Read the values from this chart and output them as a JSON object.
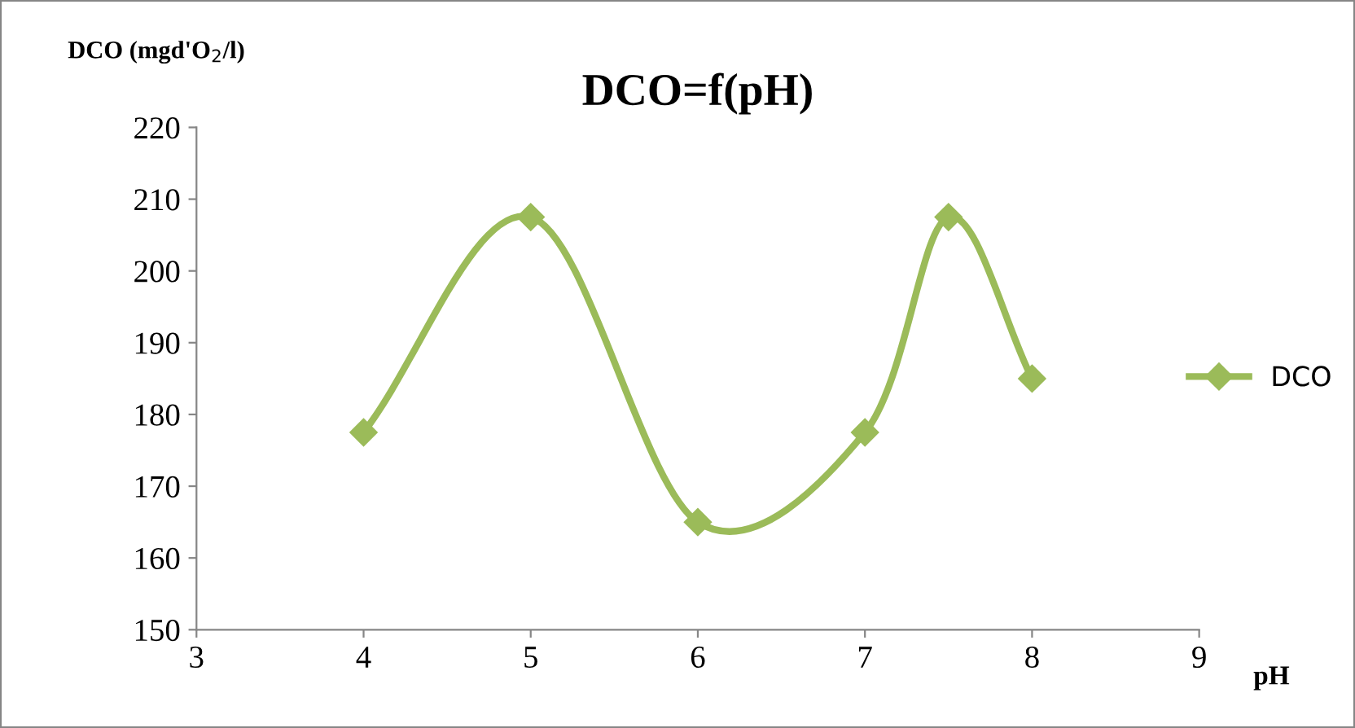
{
  "chart_data": {
    "type": "line",
    "title": "DCO=f(pH)",
    "xlabel": "pH",
    "ylabel": "DCO (mgd'O$_{2}$/l)",
    "x": [
      4,
      5,
      6,
      7,
      7.5,
      8
    ],
    "series": [
      {
        "name": "DCO",
        "color": "#9bbb59",
        "values": [
          177.5,
          207.5,
          165,
          177.5,
          207.5,
          185
        ]
      }
    ],
    "xlim": [
      3,
      9
    ],
    "xticks": [
      3,
      4,
      5,
      6,
      7,
      8,
      9
    ],
    "ylim": [
      150,
      220
    ],
    "yticks": [
      150,
      160,
      170,
      180,
      190,
      200,
      210,
      220
    ],
    "grid": false,
    "legend": "right",
    "marker": "diamond",
    "line_style": "solid"
  }
}
